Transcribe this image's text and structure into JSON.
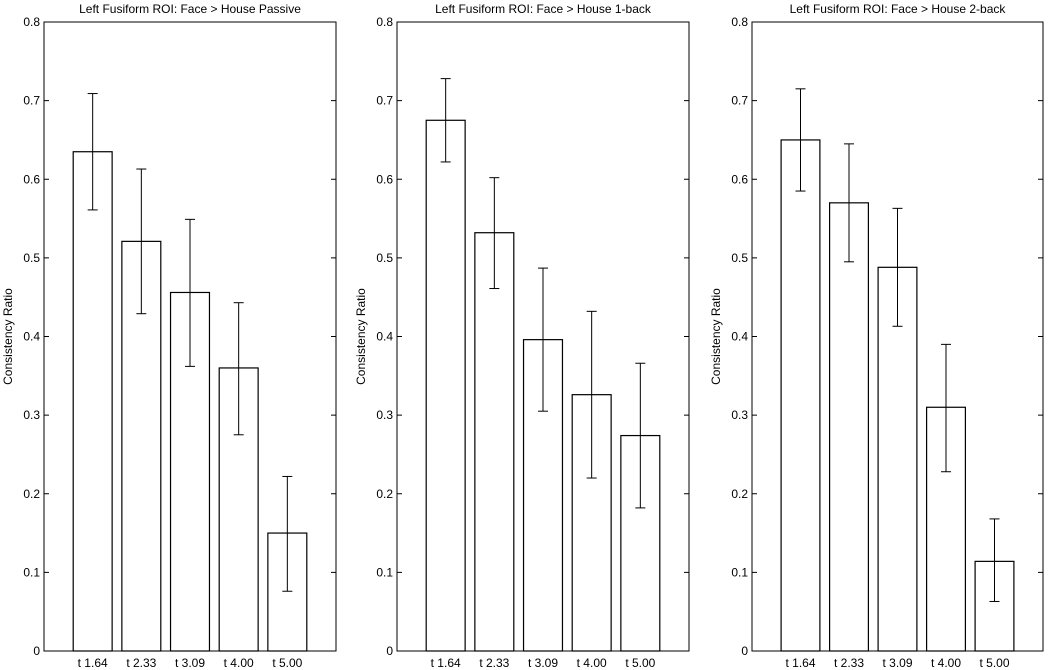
{
  "chart_data": [
    {
      "type": "bar",
      "title": "Left Fusiform ROI: Face > House Passive",
      "xlabel": "",
      "ylabel": "Consistency Ratio",
      "ylim": [
        0,
        0.8
      ],
      "yticks": [
        0,
        0.1,
        0.2,
        0.3,
        0.4,
        0.5,
        0.6,
        0.7,
        0.8
      ],
      "categories": [
        "t 1.64",
        "t 2.33",
        "t 3.09",
        "t 4.00",
        "t 5.00"
      ],
      "values": [
        0.635,
        0.521,
        0.456,
        0.36,
        0.15
      ],
      "error_low": [
        0.561,
        0.429,
        0.362,
        0.275,
        0.076
      ],
      "error_high": [
        0.709,
        0.613,
        0.549,
        0.443,
        0.222
      ],
      "grid": false
    },
    {
      "type": "bar",
      "title": "Left Fusiform ROI: Face > House 1-back",
      "xlabel": "",
      "ylabel": "Consistency Ratio",
      "ylim": [
        0,
        0.8
      ],
      "yticks": [
        0,
        0.1,
        0.2,
        0.3,
        0.4,
        0.5,
        0.6,
        0.7,
        0.8
      ],
      "categories": [
        "t 1.64",
        "t 2.33",
        "t 3.09",
        "t 4.00",
        "t 5.00"
      ],
      "values": [
        0.675,
        0.532,
        0.396,
        0.326,
        0.274
      ],
      "error_low": [
        0.622,
        0.461,
        0.305,
        0.22,
        0.182
      ],
      "error_high": [
        0.728,
        0.602,
        0.487,
        0.432,
        0.366
      ],
      "grid": false
    },
    {
      "type": "bar",
      "title": "Left Fusiform ROI: Face > House 2-back",
      "xlabel": "",
      "ylabel": "Consistency Ratio",
      "ylim": [
        0,
        0.8
      ],
      "yticks": [
        0,
        0.1,
        0.2,
        0.3,
        0.4,
        0.5,
        0.6,
        0.7,
        0.8
      ],
      "categories": [
        "t 1.64",
        "t 2.33",
        "t 3.09",
        "t 4.00",
        "t 5.00"
      ],
      "values": [
        0.65,
        0.57,
        0.488,
        0.31,
        0.114
      ],
      "error_low": [
        0.585,
        0.495,
        0.413,
        0.228,
        0.063
      ],
      "error_high": [
        0.715,
        0.645,
        0.563,
        0.39,
        0.168
      ],
      "grid": false
    }
  ]
}
